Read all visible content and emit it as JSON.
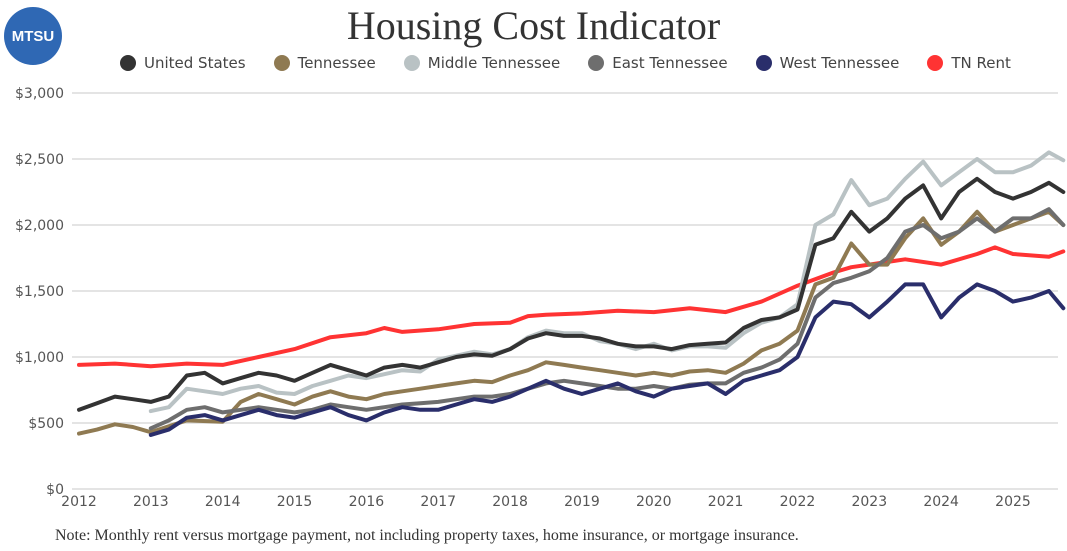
{
  "logo_text": "MTSU",
  "chart_data": {
    "type": "line",
    "title": "Housing Cost Indicator",
    "note": "Note: Monthly rent versus mortgage payment, not including property taxes, home insurance, or mortgage insurance.",
    "xlabel": "",
    "ylabel": "",
    "xlim": [
      2012,
      2025.7
    ],
    "ylim": [
      0,
      3000
    ],
    "grid": "horizontal",
    "legend": "top",
    "x_ticks": [
      "2012",
      "2013",
      "2014",
      "2015",
      "2016",
      "2017",
      "2018",
      "2019",
      "2020",
      "2021",
      "2022",
      "2023",
      "2024",
      "2025"
    ],
    "y_ticks": [
      "$0",
      "$500",
      "$1,000",
      "$1,500",
      "$2,000",
      "$2,500",
      "$3,000"
    ],
    "series": [
      {
        "name": "United States",
        "color": "#333333",
        "points": [
          [
            2012,
            600
          ],
          [
            2012.25,
            650
          ],
          [
            2012.5,
            700
          ],
          [
            2012.75,
            680
          ],
          [
            2013,
            660
          ],
          [
            2013.25,
            700
          ],
          [
            2013.5,
            860
          ],
          [
            2013.75,
            880
          ],
          [
            2014,
            800
          ],
          [
            2014.25,
            840
          ],
          [
            2014.5,
            880
          ],
          [
            2014.75,
            860
          ],
          [
            2015,
            820
          ],
          [
            2015.25,
            880
          ],
          [
            2015.5,
            940
          ],
          [
            2015.75,
            900
          ],
          [
            2016,
            860
          ],
          [
            2016.25,
            920
          ],
          [
            2016.5,
            940
          ],
          [
            2016.75,
            920
          ],
          [
            2017,
            960
          ],
          [
            2017.25,
            1000
          ],
          [
            2017.5,
            1020
          ],
          [
            2017.75,
            1010
          ],
          [
            2018,
            1060
          ],
          [
            2018.25,
            1140
          ],
          [
            2018.5,
            1180
          ],
          [
            2018.75,
            1160
          ],
          [
            2019,
            1160
          ],
          [
            2019.25,
            1140
          ],
          [
            2019.5,
            1100
          ],
          [
            2019.75,
            1080
          ],
          [
            2020,
            1080
          ],
          [
            2020.25,
            1060
          ],
          [
            2020.5,
            1090
          ],
          [
            2020.75,
            1100
          ],
          [
            2021,
            1110
          ],
          [
            2021.25,
            1220
          ],
          [
            2021.5,
            1280
          ],
          [
            2021.75,
            1300
          ],
          [
            2022,
            1360
          ],
          [
            2022.25,
            1850
          ],
          [
            2022.5,
            1900
          ],
          [
            2022.75,
            2100
          ],
          [
            2023,
            1950
          ],
          [
            2023.25,
            2050
          ],
          [
            2023.5,
            2200
          ],
          [
            2023.75,
            2300
          ],
          [
            2024,
            2050
          ],
          [
            2024.25,
            2250
          ],
          [
            2024.5,
            2350
          ],
          [
            2024.75,
            2250
          ],
          [
            2025,
            2200
          ],
          [
            2025.25,
            2250
          ],
          [
            2025.5,
            2320
          ],
          [
            2025.7,
            2250
          ]
        ]
      },
      {
        "name": "Tennessee",
        "color": "#8f7a52",
        "points": [
          [
            2012,
            420
          ],
          [
            2012.25,
            450
          ],
          [
            2012.5,
            490
          ],
          [
            2012.75,
            470
          ],
          [
            2013,
            430
          ],
          [
            2013.5,
            520
          ],
          [
            2014,
            510
          ],
          [
            2014.25,
            660
          ],
          [
            2014.5,
            720
          ],
          [
            2014.75,
            680
          ],
          [
            2015,
            640
          ],
          [
            2015.25,
            700
          ],
          [
            2015.5,
            740
          ],
          [
            2015.75,
            700
          ],
          [
            2016,
            680
          ],
          [
            2016.25,
            720
          ],
          [
            2016.5,
            740
          ],
          [
            2016.75,
            760
          ],
          [
            2017,
            780
          ],
          [
            2017.25,
            800
          ],
          [
            2017.5,
            820
          ],
          [
            2017.75,
            810
          ],
          [
            2018,
            860
          ],
          [
            2018.25,
            900
          ],
          [
            2018.5,
            960
          ],
          [
            2018.75,
            940
          ],
          [
            2019,
            920
          ],
          [
            2019.25,
            900
          ],
          [
            2019.5,
            880
          ],
          [
            2019.75,
            860
          ],
          [
            2020,
            880
          ],
          [
            2020.25,
            860
          ],
          [
            2020.5,
            890
          ],
          [
            2020.75,
            900
          ],
          [
            2021,
            880
          ],
          [
            2021.25,
            950
          ],
          [
            2021.5,
            1050
          ],
          [
            2021.75,
            1100
          ],
          [
            2022,
            1200
          ],
          [
            2022.25,
            1550
          ],
          [
            2022.5,
            1600
          ],
          [
            2022.75,
            1860
          ],
          [
            2023,
            1700
          ],
          [
            2023.25,
            1700
          ],
          [
            2023.5,
            1900
          ],
          [
            2023.75,
            2050
          ],
          [
            2024,
            1850
          ],
          [
            2024.25,
            1950
          ],
          [
            2024.5,
            2100
          ],
          [
            2024.75,
            1950
          ],
          [
            2025,
            2000
          ],
          [
            2025.25,
            2050
          ],
          [
            2025.5,
            2100
          ],
          [
            2025.7,
            2000
          ]
        ]
      },
      {
        "name": "Middle Tennessee",
        "color": "#b9c2c4",
        "points": [
          [
            2013,
            590
          ],
          [
            2013.25,
            620
          ],
          [
            2013.5,
            760
          ],
          [
            2013.75,
            740
          ],
          [
            2014,
            720
          ],
          [
            2014.25,
            760
          ],
          [
            2014.5,
            780
          ],
          [
            2014.75,
            730
          ],
          [
            2015,
            720
          ],
          [
            2015.25,
            780
          ],
          [
            2015.5,
            820
          ],
          [
            2015.75,
            860
          ],
          [
            2016,
            840
          ],
          [
            2016.25,
            870
          ],
          [
            2016.5,
            900
          ],
          [
            2016.75,
            890
          ],
          [
            2017,
            980
          ],
          [
            2017.25,
            1010
          ],
          [
            2017.5,
            1040
          ],
          [
            2017.75,
            1020
          ],
          [
            2018,
            1060
          ],
          [
            2018.25,
            1150
          ],
          [
            2018.5,
            1200
          ],
          [
            2018.75,
            1180
          ],
          [
            2019,
            1180
          ],
          [
            2019.25,
            1120
          ],
          [
            2019.5,
            1100
          ],
          [
            2019.75,
            1060
          ],
          [
            2020,
            1100
          ],
          [
            2020.25,
            1050
          ],
          [
            2020.5,
            1080
          ],
          [
            2020.75,
            1080
          ],
          [
            2021,
            1070
          ],
          [
            2021.25,
            1180
          ],
          [
            2021.5,
            1260
          ],
          [
            2021.75,
            1300
          ],
          [
            2022,
            1400
          ],
          [
            2022.25,
            2000
          ],
          [
            2022.5,
            2080
          ],
          [
            2022.75,
            2340
          ],
          [
            2023,
            2150
          ],
          [
            2023.25,
            2200
          ],
          [
            2023.5,
            2350
          ],
          [
            2023.75,
            2480
          ],
          [
            2024,
            2300
          ],
          [
            2024.25,
            2400
          ],
          [
            2024.5,
            2500
          ],
          [
            2024.75,
            2400
          ],
          [
            2025,
            2400
          ],
          [
            2025.25,
            2450
          ],
          [
            2025.5,
            2550
          ],
          [
            2025.7,
            2490
          ]
        ]
      },
      {
        "name": "East Tennessee",
        "color": "#6e6e6e",
        "points": [
          [
            2013,
            460
          ],
          [
            2013.25,
            520
          ],
          [
            2013.5,
            600
          ],
          [
            2013.75,
            620
          ],
          [
            2014,
            580
          ],
          [
            2014.25,
            600
          ],
          [
            2014.5,
            620
          ],
          [
            2014.75,
            600
          ],
          [
            2015,
            580
          ],
          [
            2015.25,
            600
          ],
          [
            2015.5,
            640
          ],
          [
            2015.75,
            620
          ],
          [
            2016,
            600
          ],
          [
            2016.25,
            620
          ],
          [
            2016.5,
            640
          ],
          [
            2016.75,
            650
          ],
          [
            2017,
            660
          ],
          [
            2017.25,
            680
          ],
          [
            2017.5,
            700
          ],
          [
            2017.75,
            700
          ],
          [
            2018,
            720
          ],
          [
            2018.25,
            760
          ],
          [
            2018.5,
            800
          ],
          [
            2018.75,
            820
          ],
          [
            2019,
            800
          ],
          [
            2019.25,
            780
          ],
          [
            2019.5,
            760
          ],
          [
            2019.75,
            760
          ],
          [
            2020,
            780
          ],
          [
            2020.25,
            760
          ],
          [
            2020.5,
            790
          ],
          [
            2020.75,
            800
          ],
          [
            2021,
            800
          ],
          [
            2021.25,
            880
          ],
          [
            2021.5,
            920
          ],
          [
            2021.75,
            980
          ],
          [
            2022,
            1100
          ],
          [
            2022.25,
            1450
          ],
          [
            2022.5,
            1560
          ],
          [
            2022.75,
            1600
          ],
          [
            2023,
            1650
          ],
          [
            2023.25,
            1750
          ],
          [
            2023.5,
            1950
          ],
          [
            2023.75,
            2000
          ],
          [
            2024,
            1900
          ],
          [
            2024.25,
            1950
          ],
          [
            2024.5,
            2050
          ],
          [
            2024.75,
            1950
          ],
          [
            2025,
            2050
          ],
          [
            2025.25,
            2050
          ],
          [
            2025.5,
            2120
          ],
          [
            2025.7,
            2000
          ]
        ]
      },
      {
        "name": "West Tennessee",
        "color": "#2a2e6b",
        "points": [
          [
            2013,
            410
          ],
          [
            2013.25,
            450
          ],
          [
            2013.5,
            540
          ],
          [
            2013.75,
            560
          ],
          [
            2014,
            520
          ],
          [
            2014.25,
            560
          ],
          [
            2014.5,
            600
          ],
          [
            2014.75,
            560
          ],
          [
            2015,
            540
          ],
          [
            2015.25,
            580
          ],
          [
            2015.5,
            620
          ],
          [
            2015.75,
            560
          ],
          [
            2016,
            520
          ],
          [
            2016.25,
            580
          ],
          [
            2016.5,
            620
          ],
          [
            2016.75,
            600
          ],
          [
            2017,
            600
          ],
          [
            2017.25,
            640
          ],
          [
            2017.5,
            680
          ],
          [
            2017.75,
            660
          ],
          [
            2018,
            700
          ],
          [
            2018.25,
            760
          ],
          [
            2018.5,
            820
          ],
          [
            2018.75,
            760
          ],
          [
            2019,
            720
          ],
          [
            2019.25,
            760
          ],
          [
            2019.5,
            800
          ],
          [
            2019.75,
            740
          ],
          [
            2020,
            700
          ],
          [
            2020.25,
            760
          ],
          [
            2020.5,
            780
          ],
          [
            2020.75,
            800
          ],
          [
            2021,
            720
          ],
          [
            2021.25,
            820
          ],
          [
            2021.5,
            860
          ],
          [
            2021.75,
            900
          ],
          [
            2022,
            1000
          ],
          [
            2022.25,
            1300
          ],
          [
            2022.5,
            1420
          ],
          [
            2022.75,
            1400
          ],
          [
            2023,
            1300
          ],
          [
            2023.25,
            1420
          ],
          [
            2023.5,
            1550
          ],
          [
            2023.75,
            1550
          ],
          [
            2024,
            1300
          ],
          [
            2024.25,
            1450
          ],
          [
            2024.5,
            1550
          ],
          [
            2024.75,
            1500
          ],
          [
            2025,
            1420
          ],
          [
            2025.25,
            1450
          ],
          [
            2025.5,
            1500
          ],
          [
            2025.7,
            1370
          ]
        ]
      },
      {
        "name": "TN Rent",
        "color": "#ff3333",
        "points": [
          [
            2012,
            940
          ],
          [
            2012.5,
            950
          ],
          [
            2013,
            930
          ],
          [
            2013.5,
            950
          ],
          [
            2014,
            940
          ],
          [
            2014.5,
            1000
          ],
          [
            2015,
            1060
          ],
          [
            2015.5,
            1150
          ],
          [
            2016,
            1180
          ],
          [
            2016.25,
            1220
          ],
          [
            2016.5,
            1190
          ],
          [
            2017,
            1210
          ],
          [
            2017.5,
            1250
          ],
          [
            2018,
            1260
          ],
          [
            2018.25,
            1310
          ],
          [
            2018.5,
            1320
          ],
          [
            2019,
            1330
          ],
          [
            2019.5,
            1350
          ],
          [
            2020,
            1340
          ],
          [
            2020.5,
            1370
          ],
          [
            2021,
            1340
          ],
          [
            2021.5,
            1420
          ],
          [
            2022,
            1540
          ],
          [
            2022.5,
            1640
          ],
          [
            2022.75,
            1680
          ],
          [
            2023,
            1700
          ],
          [
            2023.5,
            1740
          ],
          [
            2024,
            1700
          ],
          [
            2024.5,
            1780
          ],
          [
            2024.75,
            1830
          ],
          [
            2025,
            1780
          ],
          [
            2025.5,
            1760
          ],
          [
            2025.7,
            1800
          ]
        ]
      }
    ]
  }
}
